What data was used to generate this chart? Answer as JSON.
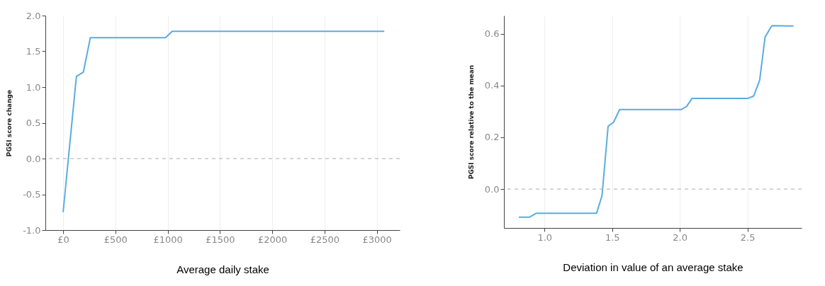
{
  "chart_data": [
    {
      "type": "line",
      "xlabel": "Average daily stake",
      "ylabel": "PGSI score change",
      "x": [
        0,
        127,
        194,
        260,
        980,
        1043,
        3072
      ],
      "series": [
        {
          "color": "#5aade0",
          "values": [
            -0.75,
            1.15,
            1.21,
            1.69,
            1.69,
            1.78,
            1.78
          ]
        }
      ],
      "xlim": [
        -170,
        3220
      ],
      "xticks": [
        {
          "value": 0,
          "label": "£0"
        },
        {
          "value": 500,
          "label": "£500"
        },
        {
          "value": 1000,
          "label": "£1000"
        },
        {
          "value": 1500,
          "label": "£1500"
        },
        {
          "value": 2000,
          "label": "£2000"
        },
        {
          "value": 2500,
          "label": "£2500"
        },
        {
          "value": 3000,
          "label": "£3000"
        }
      ],
      "ylim": [
        -1,
        2
      ],
      "yticks": [
        {
          "value": -1,
          "label": "-1.0"
        },
        {
          "value": -0.5,
          "label": "-0.5"
        },
        {
          "value": 0,
          "label": "0.0"
        },
        {
          "value": 0.5,
          "label": "0.5"
        },
        {
          "value": 1,
          "label": "1.0"
        },
        {
          "value": 1.5,
          "label": "1.5"
        },
        {
          "value": 2,
          "label": "2.0"
        }
      ],
      "grid": "x",
      "line_style": "solid",
      "ref_lines": [
        {
          "axis": "y",
          "value": 0,
          "color": "#aaaaaa",
          "line_style": "dashed"
        }
      ]
    },
    {
      "type": "line",
      "xlabel": "Deviation in value of an average stake",
      "ylabel": "PGSI score relative to the mean",
      "x": [
        0.81,
        0.89,
        0.94,
        1.385,
        1.425,
        1.47,
        1.51,
        1.555,
        2.01,
        2.05,
        2.09,
        2.5,
        2.545,
        2.59,
        2.63,
        2.68,
        2.84
      ],
      "series": [
        {
          "color": "#5aade0",
          "values": [
            -0.108,
            -0.108,
            -0.093,
            -0.093,
            -0.025,
            0.243,
            0.258,
            0.307,
            0.307,
            0.319,
            0.35,
            0.35,
            0.359,
            0.42,
            0.587,
            0.631,
            0.63
          ]
        }
      ],
      "xlim": [
        0.7,
        2.9
      ],
      "xticks": [
        {
          "value": 1,
          "label": "1.0"
        },
        1.5,
        {
          "value": 2,
          "label": "2.0"
        },
        2.5
      ],
      "ylim": [
        -0.15,
        0.67
      ],
      "yticks": [
        {
          "value": 0,
          "label": "0.0"
        },
        0.2,
        0.4,
        0.6
      ],
      "grid": "x",
      "line_style": "solid",
      "ref_lines": [
        {
          "axis": "y",
          "value": 0,
          "color": "#aaaaaa",
          "line_style": "dashed"
        }
      ]
    }
  ]
}
